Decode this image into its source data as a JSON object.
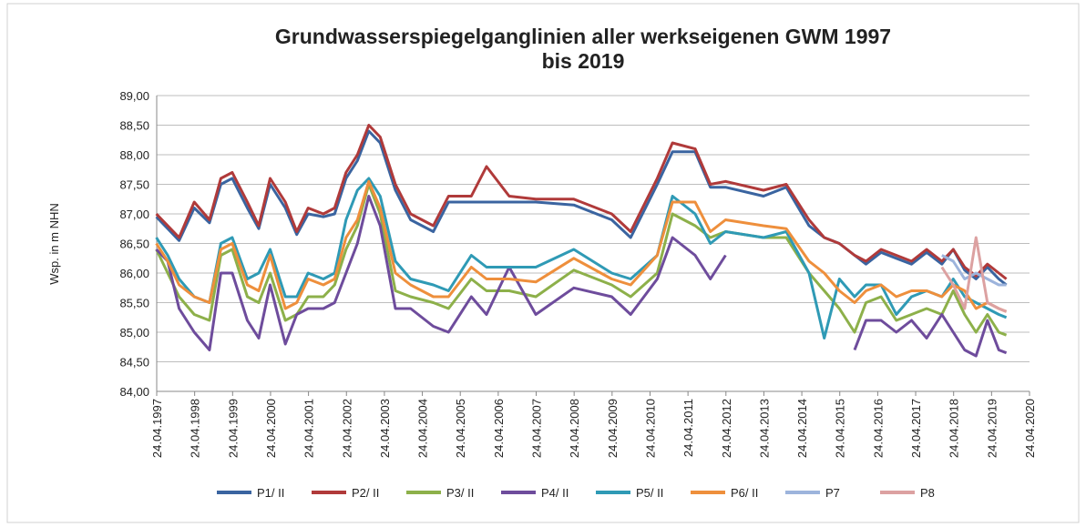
{
  "chart_data": {
    "type": "line",
    "title": [
      "Grundwasserspiegelganglinien aller werkseigenen GWM 1997",
      "bis 2019"
    ],
    "y_label": "Wsp. in m NHN",
    "x": [
      1997.3,
      1997.6,
      1997.9,
      1998.3,
      1998.7,
      1999.0,
      1999.3,
      1999.7,
      2000.0,
      2000.3,
      2000.7,
      2001.0,
      2001.3,
      2001.7,
      2002.0,
      2002.3,
      2002.6,
      2002.9,
      2003.2,
      2003.6,
      2004.0,
      2004.6,
      2005.0,
      2005.6,
      2006.0,
      2006.6,
      2007.3,
      2008.3,
      2009.3,
      2009.8,
      2010.5,
      2010.9,
      2011.5,
      2011.9,
      2012.3,
      2013.3,
      2013.9,
      2014.5,
      2014.9,
      2015.3,
      2015.7,
      2016.0,
      2016.4,
      2016.8,
      2017.2,
      2017.6,
      2018.0,
      2018.3,
      2018.6,
      2018.9,
      2019.2,
      2019.5,
      2019.7
    ],
    "series": [
      {
        "name": "P1/ II",
        "color": "#3a64a0",
        "values": [
          86.95,
          86.75,
          86.55,
          87.1,
          86.85,
          87.5,
          87.6,
          87.1,
          86.75,
          87.5,
          87.1,
          86.65,
          87.0,
          86.95,
          87.0,
          87.6,
          87.9,
          88.4,
          88.2,
          87.4,
          86.9,
          86.7,
          87.2,
          87.2,
          87.2,
          87.2,
          87.2,
          87.15,
          86.9,
          86.6,
          87.5,
          88.05,
          88.05,
          87.45,
          87.45,
          87.3,
          87.45,
          86.8,
          86.6,
          86.5,
          86.3,
          86.15,
          86.35,
          86.25,
          86.15,
          86.35,
          86.15,
          86.4,
          86.05,
          85.9,
          86.1,
          85.9,
          85.8
        ]
      },
      {
        "name": "P2/ II",
        "color": "#b03a3a",
        "values": [
          87.0,
          86.8,
          86.6,
          87.2,
          86.9,
          87.6,
          87.7,
          87.2,
          86.8,
          87.6,
          87.2,
          86.7,
          87.1,
          87.0,
          87.1,
          87.7,
          88.0,
          88.5,
          88.3,
          87.5,
          87.0,
          86.8,
          87.3,
          87.3,
          87.8,
          87.3,
          87.25,
          87.25,
          87.0,
          86.7,
          87.6,
          88.2,
          88.1,
          87.5,
          87.55,
          87.4,
          87.5,
          86.9,
          86.6,
          86.5,
          86.3,
          86.2,
          86.4,
          86.3,
          86.2,
          86.4,
          86.2,
          86.4,
          86.1,
          85.95,
          86.15,
          86.0,
          85.9
        ]
      },
      {
        "name": "P3/ II",
        "color": "#8db04a",
        "values": [
          86.4,
          86.0,
          85.6,
          85.3,
          85.2,
          86.3,
          86.4,
          85.6,
          85.5,
          86.0,
          85.2,
          85.3,
          85.6,
          85.6,
          85.8,
          86.4,
          86.8,
          87.5,
          87.0,
          85.7,
          85.6,
          85.5,
          85.4,
          85.9,
          85.7,
          85.7,
          85.6,
          86.05,
          85.8,
          85.6,
          86.0,
          87.0,
          86.8,
          86.6,
          86.7,
          86.6,
          86.6,
          86.0,
          85.7,
          85.4,
          85.0,
          85.5,
          85.6,
          85.2,
          85.3,
          85.4,
          85.3,
          85.7,
          85.3,
          85.0,
          85.3,
          85.0,
          84.95
        ]
      },
      {
        "name": "P4/ II",
        "color": "#6e4c9c",
        "values": [
          86.4,
          86.2,
          85.4,
          85.0,
          84.7,
          86.0,
          86.0,
          85.2,
          84.9,
          85.8,
          84.8,
          85.3,
          85.4,
          85.4,
          85.5,
          86.0,
          86.5,
          87.3,
          86.8,
          85.4,
          85.4,
          85.1,
          85.0,
          85.6,
          85.3,
          86.1,
          85.3,
          85.75,
          85.6,
          85.3,
          85.9,
          86.6,
          86.3,
          85.9,
          86.3,
          null,
          null,
          null,
          null,
          null,
          84.7,
          85.2,
          85.2,
          85.0,
          85.2,
          84.9,
          85.3,
          85.0,
          84.7,
          84.6,
          85.2,
          84.7,
          84.65
        ]
      },
      {
        "name": "P5/ II",
        "color": "#2f9ab5",
        "values": [
          86.6,
          86.3,
          85.9,
          85.6,
          85.5,
          86.5,
          86.6,
          85.9,
          86.0,
          86.4,
          85.6,
          85.6,
          86.0,
          85.9,
          86.0,
          86.9,
          87.4,
          87.6,
          87.3,
          86.2,
          85.9,
          85.8,
          85.7,
          86.3,
          86.1,
          86.1,
          86.1,
          86.4,
          86.0,
          85.9,
          86.3,
          87.3,
          87.0,
          86.5,
          86.7,
          86.6,
          86.7,
          86.0,
          84.9,
          85.9,
          85.6,
          85.8,
          85.8,
          85.3,
          85.6,
          85.7,
          85.6,
          85.9,
          85.6,
          85.5,
          85.4,
          85.3,
          85.25
        ]
      },
      {
        "name": "P6/ II",
        "color": "#ee8f3c",
        "values": [
          86.5,
          86.2,
          85.8,
          85.6,
          85.5,
          86.4,
          86.5,
          85.8,
          85.7,
          86.3,
          85.4,
          85.5,
          85.9,
          85.8,
          85.9,
          86.6,
          86.9,
          87.55,
          87.1,
          86.0,
          85.8,
          85.6,
          85.6,
          86.1,
          85.9,
          85.9,
          85.85,
          86.25,
          85.9,
          85.8,
          86.3,
          87.2,
          87.2,
          86.7,
          86.9,
          86.8,
          86.75,
          86.2,
          86.0,
          85.7,
          85.5,
          85.7,
          85.8,
          85.6,
          85.7,
          85.7,
          85.6,
          85.8,
          85.7,
          85.4,
          85.5,
          85.4,
          85.35
        ]
      },
      {
        "name": "P7",
        "color": "#9db4dc",
        "values": [
          null,
          null,
          null,
          null,
          null,
          null,
          null,
          null,
          null,
          null,
          null,
          null,
          null,
          null,
          null,
          null,
          null,
          null,
          null,
          null,
          null,
          null,
          null,
          null,
          null,
          null,
          null,
          null,
          null,
          null,
          null,
          null,
          null,
          null,
          null,
          null,
          null,
          null,
          null,
          null,
          null,
          null,
          null,
          null,
          null,
          null,
          86.3,
          86.2,
          85.9,
          86.0,
          85.9,
          85.8,
          85.8
        ]
      },
      {
        "name": "P8",
        "color": "#dca1a1",
        "values": [
          null,
          null,
          null,
          null,
          null,
          null,
          null,
          null,
          null,
          null,
          null,
          null,
          null,
          null,
          null,
          null,
          null,
          null,
          null,
          null,
          null,
          null,
          null,
          null,
          null,
          null,
          null,
          null,
          null,
          null,
          null,
          null,
          null,
          null,
          null,
          null,
          null,
          null,
          null,
          null,
          null,
          null,
          null,
          null,
          null,
          null,
          86.1,
          85.8,
          85.4,
          86.6,
          85.5,
          85.4,
          85.35
        ]
      }
    ],
    "xlim": [
      1997.31,
      2020.31
    ],
    "xticks": [
      {
        "value": 1997.31,
        "label": "24.04.1997"
      },
      {
        "value": 1998.31,
        "label": "24.04.1998"
      },
      {
        "value": 1999.31,
        "label": "24.04.1999"
      },
      {
        "value": 2000.31,
        "label": "24.04.2000"
      },
      {
        "value": 2001.31,
        "label": "24.04.2001"
      },
      {
        "value": 2002.31,
        "label": "24.04.2002"
      },
      {
        "value": 2003.31,
        "label": "24.04.2003"
      },
      {
        "value": 2004.31,
        "label": "24.04.2004"
      },
      {
        "value": 2005.31,
        "label": "24.04.2005"
      },
      {
        "value": 2006.31,
        "label": "24.04.2006"
      },
      {
        "value": 2007.31,
        "label": "24.04.2007"
      },
      {
        "value": 2008.31,
        "label": "24.04.2008"
      },
      {
        "value": 2009.31,
        "label": "24.04.2009"
      },
      {
        "value": 2010.31,
        "label": "24.04.2010"
      },
      {
        "value": 2011.31,
        "label": "24.04.2011"
      },
      {
        "value": 2012.31,
        "label": "24.04.2012"
      },
      {
        "value": 2013.31,
        "label": "24.04.2013"
      },
      {
        "value": 2014.31,
        "label": "24.04.2014"
      },
      {
        "value": 2015.31,
        "label": "24.04.2015"
      },
      {
        "value": 2016.31,
        "label": "24.04.2016"
      },
      {
        "value": 2017.31,
        "label": "24.04.2017"
      },
      {
        "value": 2018.31,
        "label": "24.04.2018"
      },
      {
        "value": 2019.31,
        "label": "24.04.2019"
      },
      {
        "value": 2020.31,
        "label": "24.04.2020"
      }
    ],
    "ylim": [
      84,
      89
    ],
    "yticks": [
      {
        "value": 84,
        "label": "84,00"
      },
      {
        "value": 84.5,
        "label": "84,50"
      },
      {
        "value": 85,
        "label": "85,00"
      },
      {
        "value": 85.5,
        "label": "85,50"
      },
      {
        "value": 86,
        "label": "86,00"
      },
      {
        "value": 86.5,
        "label": "86,50"
      },
      {
        "value": 87,
        "label": "87,00"
      },
      {
        "value": 87.5,
        "label": "87,50"
      },
      {
        "value": 88,
        "label": "88,00"
      },
      {
        "value": 88.5,
        "label": "88,50"
      },
      {
        "value": 89,
        "label": "89,00"
      }
    ],
    "grid": true,
    "legend": "bottom"
  }
}
